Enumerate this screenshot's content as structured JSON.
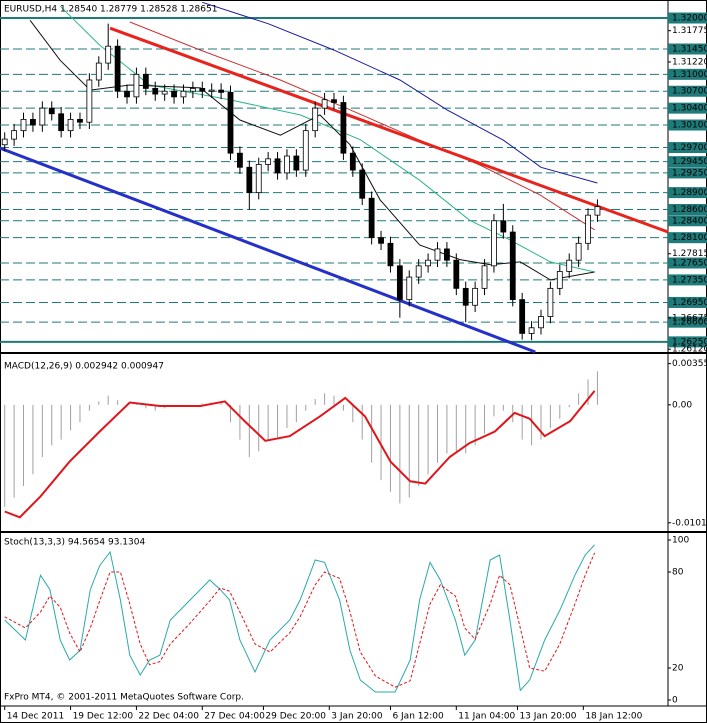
{
  "chart_data": [
    {
      "type": "candlestick",
      "title": "EURUSD,H4  1.28540 1.28779 1.28528 1.28651",
      "xlim": [
        -0.5,
        70.5
      ],
      "ylim": [
        1.2607,
        1.3232
      ],
      "up_color": "#ffffff",
      "down_color": "#000000",
      "x": [
        0,
        1,
        2,
        3,
        4,
        5,
        6,
        7,
        8,
        9,
        10,
        11,
        12,
        13,
        14,
        15,
        16,
        17,
        18,
        19,
        20,
        21,
        22,
        23,
        24,
        25,
        26,
        27,
        28,
        29,
        30,
        31,
        32,
        33,
        34,
        35,
        36,
        37,
        38,
        39,
        40,
        41,
        42,
        43,
        44,
        45,
        46,
        47,
        48,
        49,
        50,
        51,
        52,
        53,
        54,
        55,
        56,
        57,
        58,
        59,
        60,
        61,
        62,
        63
      ],
      "open": [
        1.2975,
        1.2985,
        1.3,
        1.302,
        1.301,
        1.304,
        1.303,
        1.3,
        1.302,
        1.3015,
        1.309,
        1.312,
        1.315,
        1.307,
        1.306,
        1.31,
        1.3075,
        1.3065,
        1.307,
        1.306,
        1.307,
        1.3075,
        1.307,
        1.3072,
        1.3068,
        1.296,
        1.2935,
        1.289,
        1.294,
        1.295,
        1.2925,
        1.2955,
        1.293,
        1.3,
        1.304,
        1.3055,
        1.305,
        1.296,
        1.293,
        1.288,
        1.281,
        1.28,
        1.276,
        1.27,
        1.274,
        1.276,
        1.277,
        1.279,
        1.277,
        1.272,
        1.269,
        1.272,
        1.276,
        1.284,
        1.282,
        1.27,
        1.264,
        1.265,
        1.267,
        1.272,
        1.275,
        1.277,
        1.28,
        1.285
      ],
      "high": [
        1.2997,
        1.3012,
        1.3032,
        1.3032,
        1.3052,
        1.3052,
        1.3042,
        1.3032,
        1.3032,
        1.3102,
        1.3132,
        1.319,
        1.3162,
        1.3082,
        1.3112,
        1.3112,
        1.3087,
        1.3082,
        1.3082,
        1.3082,
        1.3087,
        1.3087,
        1.3084,
        1.3084,
        1.308,
        1.2972,
        1.2947,
        1.2952,
        1.2962,
        1.2962,
        1.2967,
        1.2967,
        1.3012,
        1.3052,
        1.3067,
        1.3067,
        1.3062,
        1.2972,
        1.2942,
        1.2892,
        1.2822,
        1.2812,
        1.2772,
        1.2752,
        1.2772,
        1.2782,
        1.2802,
        1.2802,
        1.2782,
        1.2732,
        1.2732,
        1.2772,
        1.2852,
        1.287,
        1.2832,
        1.2712,
        1.2662,
        1.2682,
        1.2732,
        1.2762,
        1.2782,
        1.2812,
        1.2862,
        1.2878
      ],
      "low": [
        1.2963,
        1.2973,
        1.2988,
        1.2998,
        1.2998,
        1.3018,
        1.2988,
        1.2988,
        1.3003,
        1.3003,
        1.3078,
        1.3108,
        1.3058,
        1.3048,
        1.3048,
        1.3063,
        1.3053,
        1.3053,
        1.3048,
        1.3048,
        1.3058,
        1.3058,
        1.3058,
        1.3056,
        1.2948,
        1.2923,
        1.286,
        1.2878,
        1.2928,
        1.2913,
        1.2913,
        1.2918,
        1.2918,
        1.2988,
        1.3028,
        1.3038,
        1.2948,
        1.2918,
        1.2868,
        1.2798,
        1.2788,
        1.2748,
        1.2668,
        1.2688,
        1.2728,
        1.2748,
        1.2758,
        1.2758,
        1.2708,
        1.266,
        1.2678,
        1.2708,
        1.2748,
        1.2808,
        1.2688,
        1.2629,
        1.2628,
        1.2638,
        1.2658,
        1.2708,
        1.2738,
        1.2758,
        1.2788,
        1.2838
      ],
      "close": [
        1.2985,
        1.3,
        1.302,
        1.301,
        1.304,
        1.303,
        1.3,
        1.302,
        1.3015,
        1.309,
        1.312,
        1.315,
        1.307,
        1.306,
        1.31,
        1.3075,
        1.3065,
        1.307,
        1.306,
        1.307,
        1.3075,
        1.307,
        1.3072,
        1.3068,
        1.296,
        1.2935,
        1.289,
        1.294,
        1.295,
        1.2925,
        1.2955,
        1.293,
        1.3,
        1.304,
        1.3055,
        1.305,
        1.296,
        1.293,
        1.288,
        1.281,
        1.28,
        1.276,
        1.27,
        1.274,
        1.276,
        1.277,
        1.279,
        1.277,
        1.272,
        1.269,
        1.272,
        1.276,
        1.284,
        1.282,
        1.27,
        1.264,
        1.265,
        1.267,
        1.272,
        1.275,
        1.277,
        1.28,
        1.285,
        1.2865
      ],
      "yticks": [
        {
          "value": 1.31775,
          "label": "1.31775"
        },
        {
          "value": 1.3122,
          "label": "1.31220"
        },
        {
          "value": 1.27815,
          "label": "1.27815"
        },
        {
          "value": 1.26675,
          "label": "1.26675"
        },
        {
          "value": 1.2612,
          "label": "1.26120"
        }
      ],
      "level_color": "#1f7a7a",
      "levels": [
        {
          "value": 1.32,
          "label": "1.32000"
        },
        {
          "value": 1.3145,
          "label": "1.31450"
        },
        {
          "value": 1.31,
          "label": "1.31000"
        },
        {
          "value": 1.307,
          "label": "1.30700"
        },
        {
          "value": 1.304,
          "label": "1.30400"
        },
        {
          "value": 1.301,
          "label": "1.30100"
        },
        {
          "value": 1.297,
          "label": "1.29700"
        },
        {
          "value": 1.2945,
          "label": "1.29450"
        },
        {
          "value": 1.2925,
          "label": "1.29250"
        },
        {
          "value": 1.289,
          "label": "1.28900"
        },
        {
          "value": 1.286,
          "label": "1.28600"
        },
        {
          "value": 1.284,
          "label": "1.28400"
        },
        {
          "value": 1.281,
          "label": "1.28100"
        },
        {
          "value": 1.2765,
          "label": "1.27650"
        },
        {
          "value": 1.2735,
          "label": "1.27350"
        },
        {
          "value": 1.2695,
          "label": "1.26950"
        },
        {
          "value": 1.266,
          "label": "1.26600"
        },
        {
          "value": 1.2625,
          "label": "1.26250"
        }
      ],
      "moving_averages": [
        {
          "color": "#1a1aa0",
          "x": [
            21,
            28,
            35,
            42,
            47,
            53,
            57,
            63
          ],
          "values": [
            1.3228,
            1.319,
            1.3143,
            1.309,
            1.3037,
            1.2983,
            1.2935,
            1.2907
          ]
        },
        {
          "color": "#cc3333",
          "x": [
            13.3,
            20.8,
            29.3,
            36.7,
            44.1,
            50.5,
            56.9,
            62.7
          ],
          "values": [
            1.3193,
            1.3143,
            1.309,
            1.3037,
            1.2983,
            1.2939,
            1.2886,
            1.2824
          ]
        },
        {
          "color": "#2fb58a",
          "x": [
            5.9,
            10.1,
            15.4,
            23.9,
            31.4,
            37.8,
            44.1,
            49.4,
            53.7,
            58,
            62.7
          ],
          "values": [
            1.3221,
            1.3152,
            1.3081,
            1.3055,
            1.3028,
            1.2984,
            1.2912,
            1.2841,
            1.2806,
            1.2767,
            1.2749
          ]
        },
        {
          "color": "#111111",
          "x": [
            2.7,
            5.9,
            9.1,
            13.3,
            20.8,
            25,
            29.3,
            33.5,
            36.7,
            39.9,
            44.1,
            48.4,
            51.6,
            54.8,
            58,
            62.7
          ],
          "values": [
            1.3196,
            1.3125,
            1.3072,
            1.3081,
            1.3076,
            1.3019,
            1.2992,
            1.3028,
            1.2975,
            1.2877,
            1.2797,
            1.2771,
            1.2762,
            1.2767,
            1.2735,
            1.2749
          ]
        }
      ],
      "trendlines": [
        {
          "color": "#e8231c",
          "x": [
            11.2,
            70.5
          ],
          "values": [
            1.3182,
            1.282
          ]
        },
        {
          "color": "#2430c8",
          "x": [
            -0.5,
            56.4
          ],
          "values": [
            1.2969,
            1.2607
          ]
        }
      ]
    },
    {
      "type": "macd",
      "title": "MACD(12,26,9) 0.002942 0.000947",
      "xlim": [
        -0.5,
        70.5
      ],
      "ylim": [
        -0.0108,
        0.0043
      ],
      "yticks": [
        0.003556,
        {
          "value": 0,
          "label": "0.00"
        },
        -0.010178
      ],
      "histogram_color": "#a0a0a0",
      "histogram": [
        -0.0088,
        -0.008,
        -0.007,
        -0.006,
        -0.0045,
        -0.0035,
        -0.003,
        -0.0022,
        -0.0015,
        -0.0005,
        0.0003,
        0.0008,
        0.0004,
        0.0001,
        0.0002,
        -0.0003,
        -0.0005,
        -0.0003,
        -0.0002,
        -0.0001,
        0.0,
        0.0001,
        0.0002,
        0.0002,
        -0.0015,
        -0.003,
        -0.0045,
        -0.004,
        -0.003,
        -0.0028,
        -0.002,
        -0.0015,
        -0.0005,
        0.0005,
        0.001,
        0.0008,
        -0.0005,
        -0.0015,
        -0.003,
        -0.005,
        -0.0065,
        -0.0075,
        -0.0085,
        -0.008,
        -0.007,
        -0.006,
        -0.005,
        -0.0042,
        -0.004,
        -0.0042,
        -0.0035,
        -0.0025,
        -0.001,
        -0.0005,
        -0.0015,
        -0.003,
        -0.0035,
        -0.003,
        -0.002,
        -0.0012,
        -0.0002,
        0.001,
        0.0022,
        0.0029
      ],
      "signal": {
        "color": "#e0161b",
        "x": [
          0,
          1.6,
          3.8,
          6.9,
          10.1,
          13.3,
          16.5,
          20.8,
          23.4,
          25.5,
          27.7,
          30.3,
          33.5,
          36.2,
          38.3,
          41,
          43.1,
          44.7,
          47.3,
          49.4,
          52.1,
          54.2,
          55.8,
          57.4,
          60.1,
          62.7
        ],
        "values": [
          -0.0092,
          -0.0097,
          -0.0079,
          -0.0049,
          -0.0023,
          0.0002,
          -0.0001,
          -0.0001,
          0.0003,
          -0.0014,
          -0.0031,
          -0.0027,
          -0.001,
          0.0006,
          -0.001,
          -0.0049,
          -0.0066,
          -0.0068,
          -0.0045,
          -0.0033,
          -0.0023,
          -0.0007,
          -0.0012,
          -0.0027,
          -0.0014,
          0.0012
        ]
      }
    },
    {
      "type": "stochastic",
      "title": "Stoch(13,3,3) 94.5654 93.1304",
      "footer": "FxPro MT4, © 2001-2011 MetaQuotes Software Corp.",
      "xlim": [
        -0.5,
        70.5
      ],
      "ylim": [
        -3.75,
        103.75
      ],
      "yticks": [
        0,
        20,
        80,
        100
      ],
      "xticks": [
        {
          "value": 0,
          "label": "14 Dec 2011"
        },
        {
          "value": 7,
          "label": "19 Dec 12:00"
        },
        {
          "value": 14,
          "label": "22 Dec 04:00"
        },
        {
          "value": 21,
          "label": "27 Dec 04:00"
        },
        {
          "value": 27.5,
          "label": "29 Dec 20:00"
        },
        {
          "value": 34.5,
          "label": "3 Jan 20:00"
        },
        {
          "value": 41,
          "label": "6 Jan 12:00"
        },
        {
          "value": 48,
          "label": "11 Jan 04:00"
        },
        {
          "value": 54.5,
          "label": "13 Jan 20:00"
        },
        {
          "value": 61.5,
          "label": "18 Jan 12:00"
        }
      ],
      "main": {
        "color": "#2aa9a9",
        "x": [
          0,
          2.2,
          3.8,
          4.8,
          5.9,
          6.9,
          8.0,
          9.1,
          10.1,
          11.2,
          12.3,
          13.3,
          14.4,
          15.4,
          16.5,
          17.6,
          19.7,
          21.8,
          22.9,
          23.9,
          25.0,
          26.6,
          28.2,
          30.3,
          31.4,
          33.0,
          34.0,
          35.6,
          36.7,
          37.8,
          39.4,
          41.5,
          43.1,
          44.1,
          45.2,
          46.3,
          47.9,
          48.9,
          50.0,
          51.6,
          52.6,
          53.7,
          54.8,
          55.8,
          57.4,
          59.0,
          60.6,
          61.7,
          62.7
        ],
        "values": [
          50,
          37.5,
          78,
          69,
          37.5,
          25,
          31,
          69,
          84,
          92.5,
          62.5,
          28,
          15.6,
          25,
          28,
          50,
          62.5,
          75,
          69,
          62.5,
          37.5,
          17.5,
          37.5,
          50,
          62.5,
          87.5,
          86,
          62.5,
          31,
          12.5,
          5,
          5,
          25,
          62.5,
          86,
          75,
          50,
          28,
          37.5,
          87.5,
          90.6,
          50,
          6,
          12.5,
          37.5,
          56,
          78,
          90.6,
          97
        ]
      },
      "signal": {
        "color": "#e0161b",
        "x": [
          0,
          2.2,
          3.8,
          4.8,
          5.9,
          6.9,
          8.0,
          9.1,
          10.1,
          11.2,
          12.3,
          13.3,
          14.4,
          15.4,
          16.5,
          17.6,
          19.7,
          21.8,
          22.9,
          23.9,
          25.0,
          26.6,
          28.2,
          30.3,
          31.4,
          33.0,
          34.0,
          35.6,
          36.7,
          37.8,
          39.4,
          41.5,
          43.1,
          44.1,
          45.2,
          46.3,
          47.9,
          48.9,
          50.0,
          51.6,
          52.6,
          53.7,
          54.8,
          55.8,
          57.4,
          59.0,
          60.6,
          61.7,
          62.7
        ],
        "values": [
          52,
          45,
          55,
          65,
          58,
          42,
          30,
          45,
          62,
          80,
          80,
          60,
          35,
          22,
          24,
          35,
          48,
          62,
          70,
          68,
          55,
          35,
          30,
          42,
          52,
          72,
          80,
          76,
          55,
          30,
          15,
          8,
          12,
          35,
          60,
          72,
          65,
          45,
          38,
          60,
          78,
          72,
          45,
          20,
          18,
          35,
          60,
          78,
          92
        ]
      }
    }
  ]
}
